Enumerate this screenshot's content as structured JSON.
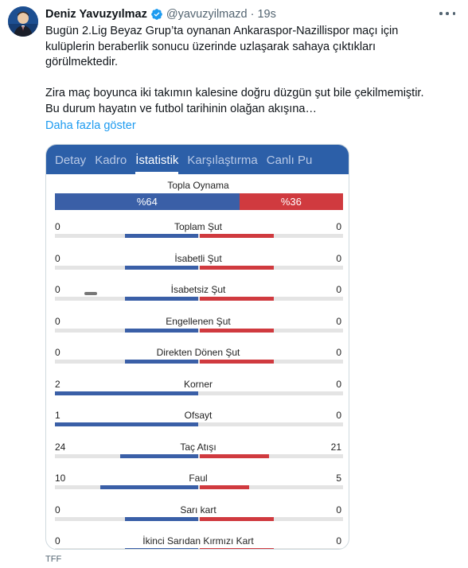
{
  "tweet": {
    "author_name": "Deniz Yavuzyılmaz",
    "handle": "@yavuzyilmazd",
    "separator": "·",
    "time": "19s",
    "paragraph1": [
      "Bugün 2.Lig Beyaz Grup’ta oynanan Ankaraspor-Nazillispor maçı için",
      "kulüplerin beraberlik sonucu üzerinde uzlaşarak sahaya çıktıkları",
      "görülmektedir."
    ],
    "paragraph2": [
      "Zira maç boyunca iki takımın kalesine doğru düzgün şut bile çekilmemiştir.",
      "Bu durum hayatın ve futbol tarihinin olağan akışına…"
    ],
    "show_more": "Daha fazla göster",
    "image_source": "TFF",
    "icons": {
      "avatar": "avatar-photo",
      "verified": "verified-badge-icon",
      "more": "more-options-icon"
    },
    "colors": {
      "link": "#1d9bf0",
      "verified": "#1d9bf0"
    }
  },
  "match_card": {
    "tabs": [
      {
        "label": "Detay",
        "active": false
      },
      {
        "label": "Kadro",
        "active": false
      },
      {
        "label": "İstatistik",
        "active": true
      },
      {
        "label": "Karşılaştırma",
        "active": false
      },
      {
        "label": "Canlı Pu",
        "active": false
      }
    ],
    "possession": {
      "label": "Topla Oynama",
      "home_text": "%64",
      "away_text": "%36",
      "home_percent": 64,
      "away_percent": 36
    },
    "stats": [
      {
        "label": "Toplam Şut",
        "home": "0",
        "away": "0"
      },
      {
        "label": "İsabetli Şut",
        "home": "0",
        "away": "0"
      },
      {
        "label": "İsabetsiz Şut",
        "home": "0",
        "away": "0"
      },
      {
        "label": "Engellenen Şut",
        "home": "0",
        "away": "0"
      },
      {
        "label": "Direkten Dönen Şut",
        "home": "0",
        "away": "0"
      },
      {
        "label": "Korner",
        "home": "2",
        "away": "0"
      },
      {
        "label": "Ofsayt",
        "home": "1",
        "away": "0"
      },
      {
        "label": "Taç Atışı",
        "home": "24",
        "away": "21"
      },
      {
        "label": "Faul",
        "home": "10",
        "away": "5"
      },
      {
        "label": "Sarı kart",
        "home": "0",
        "away": "0"
      },
      {
        "label": "İkinci Sarıdan Kırmızı Kart",
        "home": "0",
        "away": "0"
      }
    ],
    "colors": {
      "home": "#3a5fa7",
      "away": "#d03a3f",
      "tabbar": "#2c5fa8"
    }
  }
}
